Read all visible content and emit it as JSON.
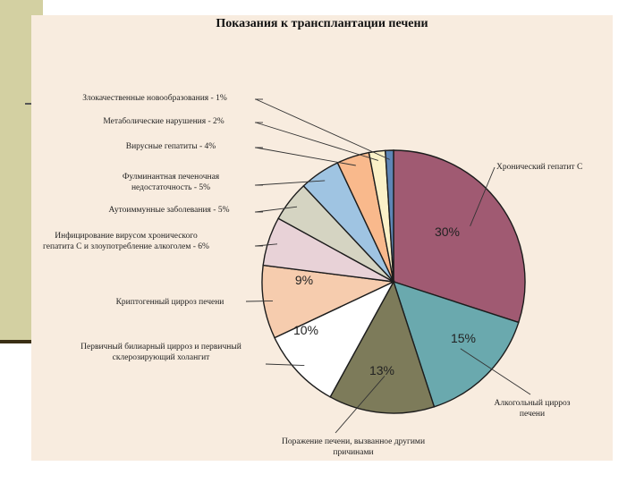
{
  "chart_data": {
    "type": "pie",
    "title": "Показания к трансплантации печени",
    "slices": [
      {
        "label": "Хронический гепатит С",
        "value": 30,
        "pct_text": "30%",
        "color": "#a05a72"
      },
      {
        "label": "Алкогольный цирроз печени",
        "value": 15,
        "pct_text": "15%",
        "color": "#6aa9ae"
      },
      {
        "label": "Поражение печени, вызванное другими причинами",
        "value": 13,
        "pct_text": "13%",
        "color": "#7d7b5a"
      },
      {
        "label": "Первичный билиарный цирроз и первичный склерозирующий холангит",
        "value": 10,
        "pct_text": "10%",
        "color": "#ffffff"
      },
      {
        "label": "Криптогенный цирроз печени",
        "value": 9,
        "pct_text": "9%",
        "color": "#f6ccae"
      },
      {
        "label": "Инфицирование вирусом хронического гепатита С и злоупотребление алкоголем - 6%",
        "value": 6,
        "pct_text": "",
        "color": "#e8d2d7"
      },
      {
        "label": "Аутоиммунные заболевания - 5%",
        "value": 5,
        "pct_text": "",
        "color": "#d5d4c2"
      },
      {
        "label": "Фулминантная печеночная недостаточность - 5%",
        "value": 5,
        "pct_text": "",
        "color": "#9fc4e2"
      },
      {
        "label": "Вирусные гепатиты - 4%",
        "value": 4,
        "pct_text": "",
        "color": "#f9b98c"
      },
      {
        "label": "Метаболические нарушения - 2%",
        "value": 2,
        "pct_text": "",
        "color": "#fbf1c8"
      },
      {
        "label": "Злокачественные новообразования - 1%",
        "value": 1,
        "pct_text": "",
        "color": "#5e86b6"
      }
    ]
  }
}
